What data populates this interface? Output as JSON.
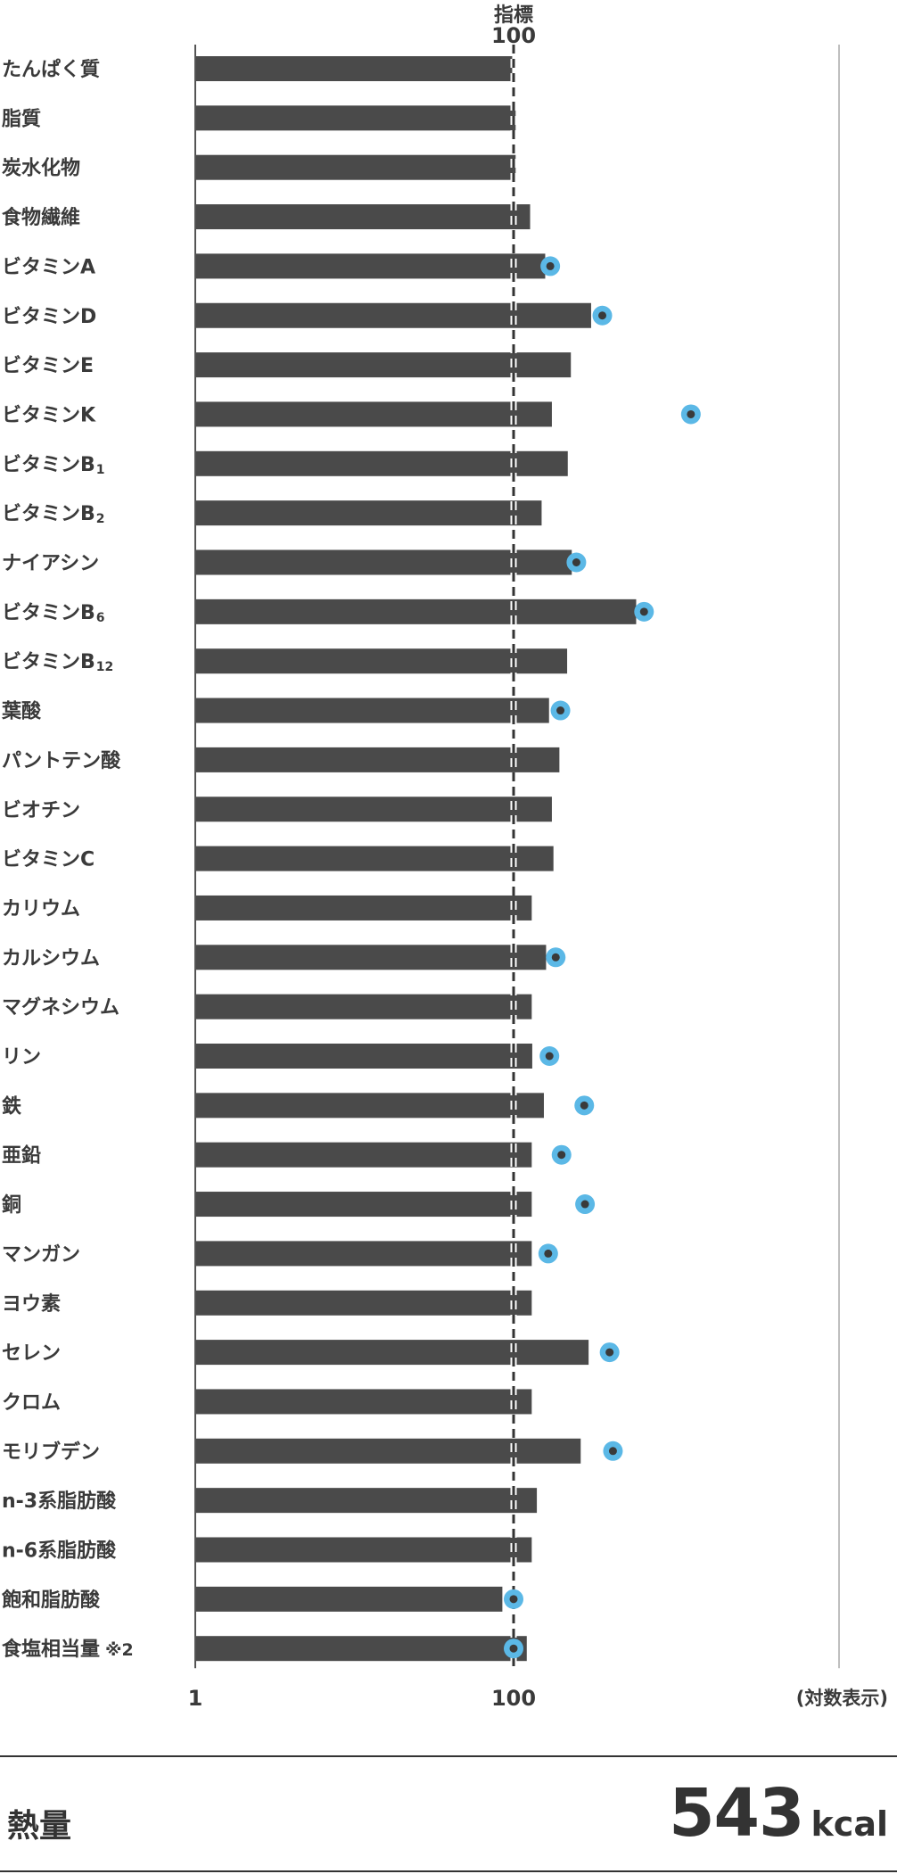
{
  "chart_data": {
    "type": "bar",
    "scale": "log",
    "reference": {
      "title": "指標",
      "value": "100"
    },
    "x_ticks": [
      "1",
      "100"
    ],
    "axis_note": "(対数表示)",
    "categories": [
      {
        "text": "たんぱく質"
      },
      {
        "text": "脂質"
      },
      {
        "text": "炭水化物"
      },
      {
        "text": "食物繊維"
      },
      {
        "text": "ビタミンA"
      },
      {
        "text": "ビタミンD"
      },
      {
        "text": "ビタミンE"
      },
      {
        "text": "ビタミンK"
      },
      {
        "text": "ビタミンB",
        "sub": "1"
      },
      {
        "text": "ビタミンB",
        "sub": "2"
      },
      {
        "text": "ナイアシン"
      },
      {
        "text": "ビタミンB",
        "sub": "6"
      },
      {
        "text": "ビタミンB",
        "sub": "12"
      },
      {
        "text": "葉酸"
      },
      {
        "text": "パントテン酸"
      },
      {
        "text": "ビオチン"
      },
      {
        "text": "ビタミンC"
      },
      {
        "text": "カリウム"
      },
      {
        "text": "カルシウム"
      },
      {
        "text": "マグネシウム"
      },
      {
        "text": "リン"
      },
      {
        "text": "鉄"
      },
      {
        "text": "亜鉛"
      },
      {
        "text": "銅"
      },
      {
        "text": "マンガン"
      },
      {
        "text": "ヨウ素"
      },
      {
        "text": "セレン"
      },
      {
        "text": "クロム"
      },
      {
        "text": "モリブデン"
      },
      {
        "text": "n-3系脂肪酸"
      },
      {
        "text": "n-6系脂肪酸"
      },
      {
        "text": "飽和脂肪酸"
      },
      {
        "text": "食塩相当量",
        "note": "※2"
      }
    ],
    "values": [
      98,
      103,
      103,
      127,
      158,
      307,
      229,
      174,
      219,
      150,
      232,
      589,
      217,
      167,
      194,
      174,
      178,
      130,
      160,
      130,
      131,
      155,
      130,
      130,
      130,
      130,
      296,
      130,
      264,
      140,
      130,
      85,
      121
    ],
    "markers": [
      null,
      null,
      null,
      null,
      170,
      361,
      null,
      1300,
      null,
      null,
      248,
      660,
      null,
      197,
      null,
      null,
      null,
      null,
      184,
      null,
      168,
      278,
      200,
      281,
      165,
      null,
      401,
      null,
      421,
      null,
      null,
      100,
      100
    ],
    "colors": {
      "bar": "#4a4a4a",
      "marker": "#5bb8e6",
      "marker_dot": "#3a3a3a",
      "axis": "#555555",
      "reference": "#333333",
      "right_line": "#aaaaaa"
    }
  },
  "energy": {
    "label": "熱量",
    "value": "543",
    "unit": "kcal"
  }
}
